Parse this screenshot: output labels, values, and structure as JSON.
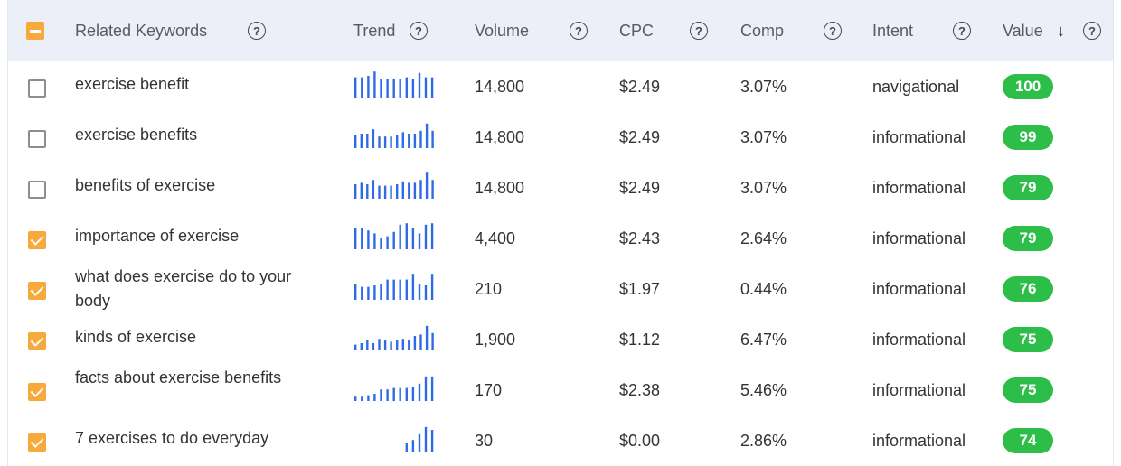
{
  "header": {
    "keywords_label": "Related Keywords",
    "trend_label": "Trend",
    "volume_label": "Volume",
    "cpc_label": "CPC",
    "comp_label": "Comp",
    "intent_label": "Intent",
    "value_label": "Value",
    "help_glyph": "?",
    "sort_glyph": "↓",
    "select_all_state": "partial"
  },
  "colors": {
    "header_bg": "#eceef8",
    "checkbox_checked": "#f7a93b",
    "trend_bar": "#2f6be4",
    "value_badge": "#2dbe4a"
  },
  "rows": [
    {
      "checked": false,
      "keyword": "exercise benefit",
      "trend": [
        0.7,
        0.7,
        0.75,
        0.9,
        0.65,
        0.65,
        0.65,
        0.65,
        0.7,
        0.65,
        0.85,
        0.7,
        0.7
      ],
      "volume": "14,800",
      "cpc": "$2.49",
      "comp": "3.07%",
      "intent": "navigational",
      "value": "100"
    },
    {
      "checked": false,
      "keyword": "exercise benefits",
      "trend": [
        0.45,
        0.5,
        0.5,
        0.65,
        0.4,
        0.4,
        0.4,
        0.45,
        0.55,
        0.5,
        0.5,
        0.6,
        0.85,
        0.6
      ],
      "volume": "14,800",
      "cpc": "$2.49",
      "comp": "3.07%",
      "intent": "informational",
      "value": "99"
    },
    {
      "checked": false,
      "keyword": "benefits of exercise",
      "trend": [
        0.5,
        0.55,
        0.5,
        0.65,
        0.45,
        0.45,
        0.45,
        0.5,
        0.6,
        0.55,
        0.55,
        0.65,
        0.9,
        0.65
      ],
      "volume": "14,800",
      "cpc": "$2.49",
      "comp": "3.07%",
      "intent": "informational",
      "value": "79"
    },
    {
      "checked": true,
      "keyword": "importance of exercise",
      "trend": [
        0.75,
        0.75,
        0.65,
        0.55,
        0.4,
        0.45,
        0.6,
        0.85,
        0.9,
        0.75,
        0.55,
        0.85,
        0.9
      ],
      "volume": "4,400",
      "cpc": "$2.43",
      "comp": "2.64%",
      "intent": "informational",
      "value": "79"
    },
    {
      "checked": true,
      "keyword": "what does exercise do to your body",
      "trend": [
        0.55,
        0.45,
        0.45,
        0.5,
        0.55,
        0.7,
        0.7,
        0.7,
        0.7,
        0.9,
        0.55,
        0.5,
        0.9
      ],
      "volume": "210",
      "cpc": "$1.97",
      "comp": "0.44%",
      "intent": "informational",
      "value": "76"
    },
    {
      "checked": true,
      "keyword": "kinds of exercise",
      "trend": [
        0.2,
        0.25,
        0.35,
        0.25,
        0.4,
        0.35,
        0.3,
        0.35,
        0.4,
        0.35,
        0.5,
        0.55,
        0.85,
        0.6
      ],
      "volume": "1,900",
      "cpc": "$1.12",
      "comp": "6.47%",
      "intent": "informational",
      "value": "75"
    },
    {
      "checked": true,
      "keyword": "facts about exercise benefits",
      "trend": [
        0.15,
        0.15,
        0.2,
        0.25,
        0.4,
        0.4,
        0.45,
        0.45,
        0.45,
        0.5,
        0.6,
        0.85,
        0.85
      ],
      "volume": "170",
      "cpc": "$2.38",
      "comp": "5.46%",
      "intent": "informational",
      "value": "75"
    },
    {
      "checked": true,
      "keyword": "7 exercises to do everyday",
      "trend": [
        0,
        0,
        0,
        0,
        0,
        0,
        0,
        0,
        0.3,
        0.4,
        0.6,
        0.85,
        0.75
      ],
      "volume": "30",
      "cpc": "$0.00",
      "comp": "2.86%",
      "intent": "informational",
      "value": "74"
    }
  ]
}
